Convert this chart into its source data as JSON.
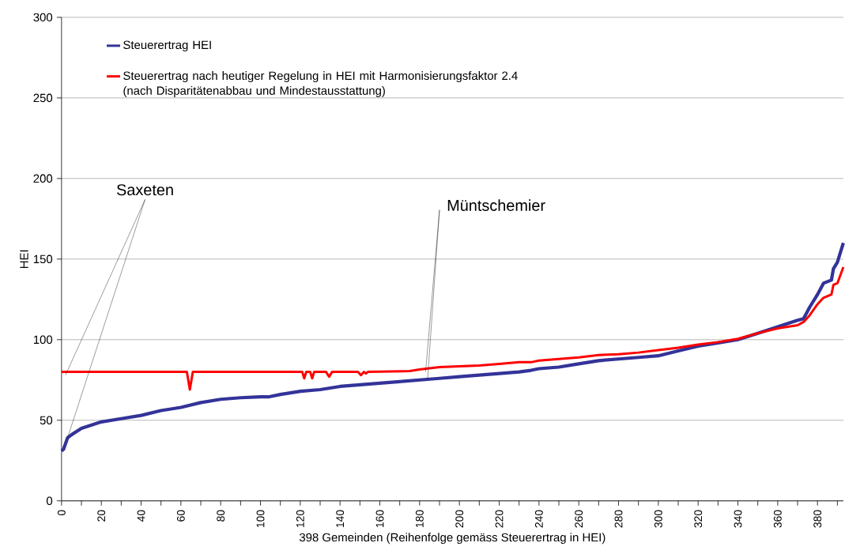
{
  "chart_data": {
    "type": "line",
    "xlabel": "398 Gemeinden (Reihenfolge gemäss Steuerertrag in HEI)",
    "ylabel": "HEI",
    "xlim": [
      0,
      393
    ],
    "ylim": [
      0,
      300
    ],
    "xticks": [
      0,
      {
        "value": 10,
        "label": null
      },
      20,
      {
        "value": 30,
        "label": null
      },
      40,
      {
        "value": 50,
        "label": null
      },
      60,
      {
        "value": 70,
        "label": null
      },
      80,
      {
        "value": 90,
        "label": null
      },
      100,
      {
        "value": 110,
        "label": null
      },
      120,
      {
        "value": 130,
        "label": null
      },
      140,
      {
        "value": 150,
        "label": null
      },
      160,
      {
        "value": 170,
        "label": null
      },
      180,
      {
        "value": 190,
        "label": null
      },
      200,
      {
        "value": 210,
        "label": null
      },
      220,
      {
        "value": 230,
        "label": null
      },
      240,
      {
        "value": 250,
        "label": null
      },
      260,
      {
        "value": 270,
        "label": null
      },
      280,
      {
        "value": 290,
        "label": null
      },
      300,
      {
        "value": 310,
        "label": null
      },
      320,
      {
        "value": 330,
        "label": null
      },
      340,
      {
        "value": 350,
        "label": null
      },
      360,
      {
        "value": 370,
        "label": null
      },
      380,
      {
        "value": 390,
        "label": null
      }
    ],
    "yticks": [
      0,
      50,
      100,
      150,
      200,
      250,
      300
    ],
    "grid": "y",
    "legend": "top left",
    "marker": "none",
    "line_style": "solid",
    "series": [
      {
        "name": "Steuerertrag HEI",
        "color": "#333399",
        "x": [
          0,
          1,
          3,
          5,
          10,
          20,
          30,
          40,
          50,
          60,
          70,
          80,
          90,
          100,
          104,
          110,
          120,
          130,
          140,
          150,
          160,
          170,
          180,
          190,
          200,
          210,
          220,
          230,
          236,
          240,
          250,
          260,
          270,
          280,
          290,
          300,
          310,
          320,
          330,
          340,
          350,
          360,
          370,
          373,
          376,
          380,
          383,
          387,
          388,
          390,
          393
        ],
        "values": [
          31,
          32,
          39,
          41,
          45,
          49,
          51,
          53,
          56,
          58,
          61,
          63,
          64,
          64.5,
          64.5,
          66,
          68,
          69,
          71,
          72,
          73,
          74,
          75,
          76,
          77,
          78,
          79,
          80,
          81,
          82,
          83,
          85,
          87,
          88,
          89,
          90,
          93,
          96,
          98,
          100,
          104,
          108,
          112,
          113,
          120,
          128,
          135,
          137,
          144,
          148,
          160
        ]
      },
      {
        "name": "Steuerertrag nach heutiger Regelung in HEI mit Harmonisierungsfaktor 2.4 (nach Disparitätenabbau und Mindestausstattung)",
        "color": "#ff0000",
        "x": [
          0,
          63,
          64.5,
          66,
          121,
          122,
          123,
          125,
          126,
          127,
          133,
          134.5,
          136,
          149,
          150.5,
          152,
          153,
          154,
          175,
          180,
          190,
          200,
          210,
          220,
          230,
          236,
          240,
          250,
          260,
          270,
          280,
          290,
          300,
          310,
          320,
          330,
          340,
          350,
          360,
          370,
          373,
          376,
          380,
          383,
          387,
          388,
          390,
          393
        ],
        "values": [
          80,
          80,
          69,
          80,
          80,
          76,
          80,
          80,
          76,
          80,
          80,
          77,
          80,
          80,
          78,
          80,
          79,
          80,
          80.5,
          81.5,
          83,
          83.5,
          84,
          85,
          86,
          86,
          87,
          88,
          89,
          90.5,
          91,
          92,
          93.5,
          95,
          97,
          98.5,
          100.5,
          104,
          107,
          109,
          111,
          115,
          122,
          126,
          128,
          134,
          135,
          145
        ]
      }
    ],
    "annotations": [
      {
        "text": "Saxeten",
        "x": 3,
        "y": 39
      },
      {
        "text": "Müntschemier",
        "x": 184,
        "y": 75.5
      }
    ]
  }
}
